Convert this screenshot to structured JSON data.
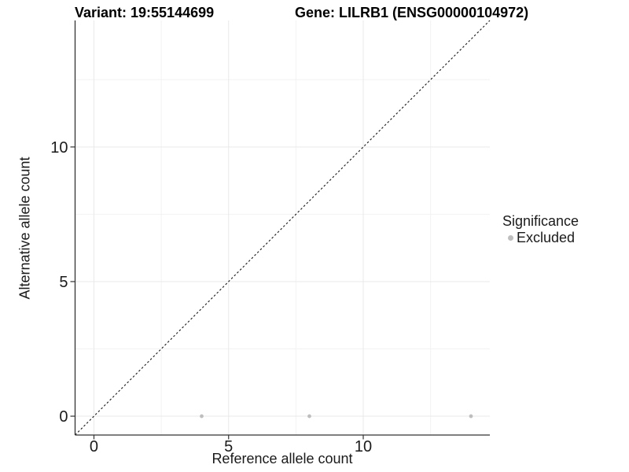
{
  "chart_data": {
    "type": "scatter",
    "title_left": "Variant: 19:55144699",
    "title_right": "Gene: LILRB1 (ENSG00000104972)",
    "xlabel": "Reference allele count",
    "ylabel": "Alternative allele count",
    "xlim": [
      -0.7,
      14.7
    ],
    "ylim": [
      -0.7,
      14.7
    ],
    "x_major_ticks": [
      0,
      5,
      10
    ],
    "y_major_ticks": [
      0,
      5,
      10
    ],
    "x_minor_ticks": [
      2.5,
      7.5,
      12.5
    ],
    "y_minor_ticks": [
      2.5,
      7.5,
      12.5
    ],
    "grid": true,
    "reference_line": {
      "type": "identity",
      "style": "dashed",
      "color": "#1a1a1a"
    },
    "series": [
      {
        "name": "Excluded",
        "color": "#bebebe",
        "points": [
          {
            "x": 4,
            "y": 0
          },
          {
            "x": 8,
            "y": 0
          },
          {
            "x": 14,
            "y": 0
          }
        ]
      }
    ],
    "legend": {
      "title": "Significance",
      "position": "right",
      "items": [
        {
          "label": "Excluded",
          "color": "#bebebe"
        }
      ]
    },
    "colors": {
      "background": "#ffffff",
      "axis_line": "#333333",
      "major_grid": "#e9e9e9",
      "minor_grid": "#f2f2f2",
      "tick_text": "#1a1a1a"
    }
  }
}
